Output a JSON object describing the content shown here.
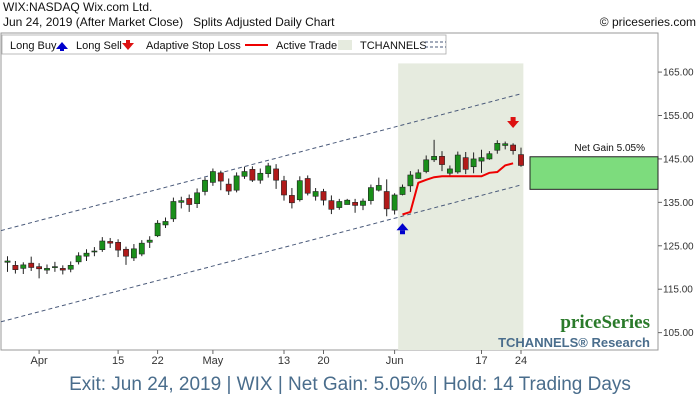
{
  "header": {
    "line1": "WIX:NASDAQ Wix.com Ltd.",
    "line2": "Jun 24, 2019 (After Market Close)   Splits Adjusted Daily Chart",
    "copyright": "© priceseries.com"
  },
  "legend": {
    "long_buy": "Long Buy",
    "long_sell": "Long Sell",
    "adaptive_stop": "Adaptive Stop Loss",
    "active_trade": "Active Trade",
    "tchannels": "TCHANNELS"
  },
  "brand": {
    "logo": "priceSeries",
    "sub": "TCHANNELS® Research"
  },
  "footer": "Exit: Jun 24, 2019 | WIX | Net Gain: 5.05% | Hold: 14 Trading Days",
  "colors": {
    "up": "#1a8f1a",
    "down": "#b11a1a",
    "stop": "#ee0000",
    "buy_arrow": "#0000cc",
    "sell_arrow": "#dd1111",
    "gain_box": "#7ddc7d",
    "active_bg": "#e6ebdf",
    "channel": "#4a5a7a"
  },
  "chart_data": {
    "type": "candlestick",
    "y_ticks": [
      "165.00",
      "155.00",
      "145.00",
      "135.00",
      "125.00",
      "115.00",
      "105.00"
    ],
    "ylim": [
      101,
      174
    ],
    "x_labels": [
      {
        "label": "Apr",
        "i": 4
      },
      {
        "label": "15",
        "i": 14
      },
      {
        "label": "22",
        "i": 19
      },
      {
        "label": "May",
        "i": 26
      },
      {
        "label": "13",
        "i": 35
      },
      {
        "label": "20",
        "i": 40
      },
      {
        "label": "Jun",
        "i": 49
      },
      {
        "label": "17",
        "i": 60
      },
      {
        "label": "24",
        "i": 65
      }
    ],
    "net_gain_label": "Net Gain 5.05%",
    "gain_range": [
      138,
      145.5
    ],
    "entry": {
      "i": 50,
      "price": 129.5
    },
    "exit": {
      "i": 64,
      "price": 153.5
    },
    "active_range": [
      50,
      65
    ],
    "channel_upper": [
      [
        0,
        128.5
      ],
      [
        65,
        160
      ]
    ],
    "channel_lower": [
      [
        0,
        107.5
      ],
      [
        65,
        139
      ]
    ],
    "stop_loss": [
      [
        50,
        132.2
      ],
      [
        51,
        132.8
      ],
      [
        52,
        139.5
      ],
      [
        53,
        140.2
      ],
      [
        54,
        140.8
      ],
      [
        55,
        141
      ],
      [
        56,
        141
      ],
      [
        57,
        141
      ],
      [
        58,
        141
      ],
      [
        59,
        141
      ],
      [
        60,
        141
      ],
      [
        61,
        141.8
      ],
      [
        62,
        142
      ],
      [
        63,
        143.5
      ],
      [
        64,
        144
      ]
    ],
    "candles": [
      [
        121.2,
        121.5,
        119,
        122.6
      ],
      [
        120.5,
        119.5,
        118.6,
        121.5
      ],
      [
        119.8,
        120.6,
        118.5,
        121.2
      ],
      [
        121,
        120,
        119.2,
        122.5
      ],
      [
        120.2,
        119.7,
        117.5,
        121
      ],
      [
        119.4,
        119.8,
        118.5,
        120.7
      ],
      [
        120.1,
        120.2,
        119,
        121.3
      ],
      [
        119.8,
        119.4,
        118.4,
        120.5
      ],
      [
        119.6,
        120.5,
        118.9,
        121.4
      ],
      [
        121.3,
        122.7,
        120.7,
        123.5
      ],
      [
        122.6,
        123.3,
        121.5,
        124.2
      ],
      [
        123.6,
        123.8,
        122.6,
        124.7
      ],
      [
        124.1,
        126.1,
        123.6,
        127
      ],
      [
        126,
        125.6,
        124.5,
        126.8
      ],
      [
        125.8,
        124,
        122.4,
        126.5
      ],
      [
        124.2,
        122.6,
        120.6,
        124.8
      ],
      [
        122.2,
        124.3,
        121.5,
        125.4
      ],
      [
        123.1,
        125.6,
        122.6,
        126.3
      ],
      [
        125.8,
        126.3,
        124.5,
        127.2
      ],
      [
        127.3,
        130.2,
        127,
        130.9
      ],
      [
        129.8,
        130.6,
        129.1,
        131.5
      ],
      [
        131.2,
        135.2,
        130.5,
        136.1
      ],
      [
        135,
        135.4,
        133.6,
        136.3
      ],
      [
        135.9,
        134.5,
        132.8,
        136.8
      ],
      [
        134.7,
        137.2,
        133.7,
        138.2
      ],
      [
        137.5,
        140.1,
        136.6,
        140.7
      ],
      [
        139.6,
        142.1,
        138.8,
        142.8
      ],
      [
        141.8,
        139.9,
        137.8,
        142.3
      ],
      [
        139.2,
        137.6,
        136.7,
        140.5
      ],
      [
        137.8,
        141.1,
        137.3,
        141.9
      ],
      [
        141,
        142.1,
        140.4,
        143.2
      ],
      [
        142.6,
        140.1,
        139.7,
        143.3
      ],
      [
        140.1,
        141.7,
        139.3,
        142.8
      ],
      [
        141.6,
        143.4,
        140.7,
        144.1
      ],
      [
        142.7,
        140.1,
        138.1,
        143.8
      ],
      [
        140,
        136.7,
        135.4,
        141.1
      ],
      [
        136.6,
        134.9,
        133.6,
        138.3
      ],
      [
        135.6,
        140,
        135.2,
        141
      ],
      [
        140.5,
        137.1,
        136.6,
        141.2
      ],
      [
        136.4,
        137.5,
        135.4,
        138.3
      ],
      [
        137.5,
        135.5,
        134.3,
        138.1
      ],
      [
        135.4,
        133.4,
        132.3,
        136.6
      ],
      [
        133.8,
        135.2,
        133.3,
        135.8
      ],
      [
        134.5,
        135.5,
        134.5,
        135.8
      ],
      [
        135,
        134.3,
        132.6,
        135.8
      ],
      [
        134.3,
        135.3,
        133.2,
        135.9
      ],
      [
        135.4,
        138.4,
        134.5,
        139.1
      ],
      [
        137.8,
        138.9,
        137.5,
        140.7
      ],
      [
        137.5,
        133.5,
        131.8,
        140.3
      ],
      [
        133.2,
        136.7,
        132.2,
        137.1
      ],
      [
        136.8,
        138.5,
        136.6,
        139.1
      ],
      [
        138.8,
        141.3,
        137.4,
        142.2
      ],
      [
        140.5,
        141.8,
        140.4,
        142.6
      ],
      [
        142.1,
        144.8,
        141.7,
        145.8
      ],
      [
        144.8,
        145.6,
        144.3,
        149.4
      ],
      [
        145.6,
        143.7,
        142.2,
        146.8
      ],
      [
        141.7,
        142.7,
        140.9,
        143.5
      ],
      [
        142,
        145.9,
        141.6,
        146.7
      ],
      [
        145.3,
        142.6,
        141.5,
        146.6
      ],
      [
        143.2,
        145,
        141.7,
        146.5
      ],
      [
        144.5,
        145.3,
        141.8,
        147.1
      ],
      [
        145,
        146.2,
        144.8,
        146.8
      ],
      [
        147,
        148.6,
        146.2,
        149.3
      ],
      [
        148.1,
        148.5,
        147.2,
        149
      ],
      [
        148.2,
        146.9,
        146,
        148.6
      ],
      [
        146,
        143.5,
        143.2,
        147.6
      ]
    ]
  }
}
